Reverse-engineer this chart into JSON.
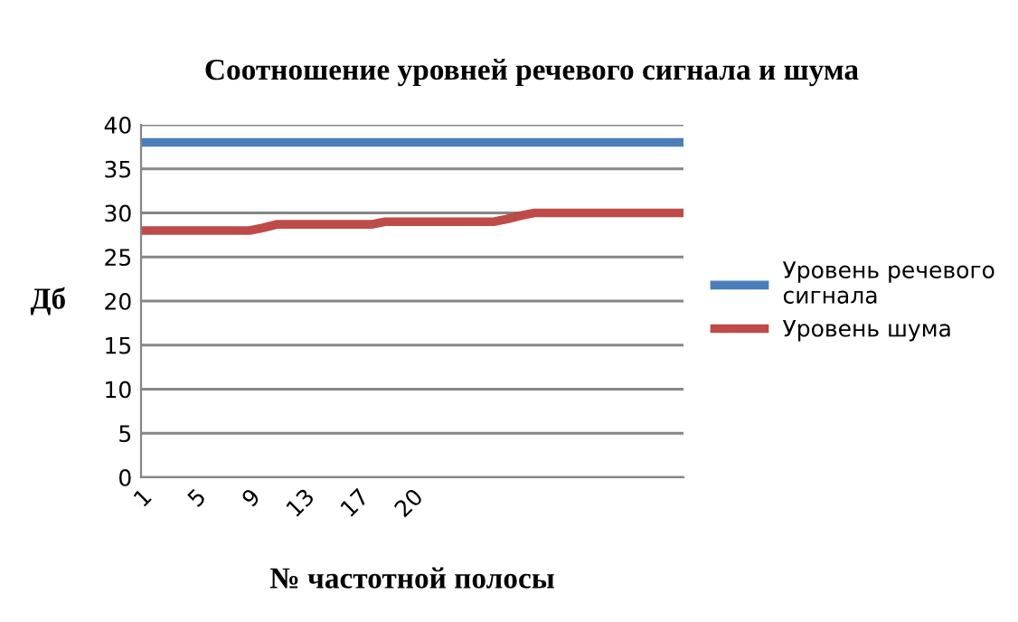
{
  "chart_data": {
    "type": "line",
    "title": "Соотношение уровней речевого сигнала и шума",
    "xlabel": "№ частотной полосы",
    "ylabel": "Дб",
    "categories": [
      "1",
      null,
      null,
      null,
      "5",
      null,
      null,
      null,
      "9",
      null,
      null,
      null,
      "13",
      null,
      null,
      null,
      "17",
      null,
      null,
      null,
      "20",
      null,
      null,
      null,
      null,
      null,
      null,
      null,
      null,
      null,
      null,
      null,
      null,
      null,
      null,
      null,
      null,
      null,
      null,
      null,
      null
    ],
    "series": [
      {
        "name": "Уровень речевого сигнала",
        "color": "#4a7ebb",
        "values": [
          38,
          38,
          38,
          38,
          38,
          38,
          38,
          38,
          38,
          38,
          38,
          38,
          38,
          38,
          38,
          38,
          38,
          38,
          38,
          38,
          38,
          38,
          38,
          38,
          38,
          38,
          38,
          38,
          38,
          38,
          38,
          38,
          38,
          38,
          38,
          38,
          38,
          38,
          38,
          38,
          38
        ]
      },
      {
        "name": "Уровень шума",
        "color": "#be4b48",
        "values": [
          28,
          28,
          28,
          28,
          28,
          28,
          28,
          28,
          28,
          28.3,
          28.7,
          28.7,
          28.7,
          28.7,
          28.7,
          28.7,
          28.7,
          28.7,
          29,
          29,
          29,
          29,
          29,
          29,
          29,
          29,
          29,
          29.3,
          29.7,
          30,
          30,
          30,
          30,
          30,
          30,
          30,
          30,
          30,
          30,
          30,
          30
        ]
      }
    ],
    "ylim": [
      0,
      40
    ],
    "yticks": [
      0,
      5,
      10,
      15,
      20,
      25,
      30,
      35,
      40
    ],
    "grid": "y",
    "legend": "right",
    "marker": "none",
    "line_style": "solid"
  }
}
